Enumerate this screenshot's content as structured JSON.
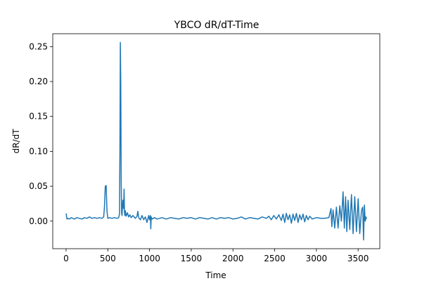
{
  "chart_data": {
    "type": "line",
    "title": "YBCO dR/dT-Time",
    "xlabel": "Time",
    "ylabel": "dR/dT",
    "xlim": [
      -160,
      3760
    ],
    "ylim": [
      -0.0395,
      0.2685
    ],
    "xticks": [
      0,
      500,
      1000,
      1500,
      2000,
      2500,
      3000,
      3500
    ],
    "xtick_labels": [
      "0",
      "500",
      "1000",
      "1500",
      "2000",
      "2500",
      "3000",
      "3500"
    ],
    "yticks": [
      0.0,
      0.05,
      0.1,
      0.15,
      0.2,
      0.25
    ],
    "ytick_labels": [
      "0.00",
      "0.05",
      "0.10",
      "0.15",
      "0.20",
      "0.25"
    ],
    "grid": false,
    "series": [
      {
        "color": "#1f77b4",
        "x": [
          0,
          10,
          20,
          40,
          60,
          80,
          100,
          130,
          160,
          190,
          220,
          250,
          280,
          310,
          340,
          370,
          400,
          430,
          450,
          460,
          470,
          480,
          490,
          500,
          520,
          550,
          580,
          610,
          630,
          640,
          645,
          650,
          655,
          660,
          665,
          670,
          680,
          690,
          695,
          700,
          705,
          710,
          720,
          735,
          750,
          765,
          780,
          800,
          830,
          850,
          860,
          870,
          890,
          910,
          930,
          950,
          970,
          990,
          1000,
          1010,
          1015,
          1020,
          1030,
          1060,
          1090,
          1120,
          1150,
          1200,
          1250,
          1300,
          1350,
          1400,
          1450,
          1500,
          1550,
          1600,
          1650,
          1700,
          1750,
          1800,
          1850,
          1900,
          1950,
          2000,
          2050,
          2100,
          2150,
          2200,
          2250,
          2300,
          2350,
          2400,
          2430,
          2460,
          2490,
          2520,
          2550,
          2580,
          2600,
          2620,
          2640,
          2660,
          2680,
          2700,
          2720,
          2740,
          2760,
          2780,
          2800,
          2820,
          2840,
          2860,
          2880,
          2900,
          2920,
          2950,
          3000,
          3050,
          3100,
          3150,
          3175,
          3185,
          3200,
          3220,
          3240,
          3260,
          3280,
          3300,
          3320,
          3335,
          3350,
          3365,
          3380,
          3400,
          3420,
          3440,
          3460,
          3480,
          3500,
          3520,
          3540,
          3555,
          3565,
          3575,
          3585,
          3595,
          3600
        ],
        "y": [
          0.011,
          0.003,
          0.004,
          0.003,
          0.005,
          0.004,
          0.003,
          0.005,
          0.004,
          0.003,
          0.005,
          0.004,
          0.006,
          0.004,
          0.005,
          0.004,
          0.005,
          0.004,
          0.006,
          0.02,
          0.05,
          0.051,
          0.015,
          0.004,
          0.005,
          0.004,
          0.005,
          0.004,
          0.005,
          0.01,
          0.1,
          0.256,
          0.2,
          0.06,
          0.012,
          0.008,
          0.03,
          0.018,
          0.046,
          0.012,
          0.008,
          0.015,
          0.007,
          0.012,
          0.006,
          0.009,
          0.005,
          0.008,
          0.004,
          0.007,
          0.014,
          0.005,
          0.002,
          0.008,
          0.002,
          0.006,
          -0.002,
          0.008,
          0.002,
          0.008,
          -0.011,
          0.006,
          0.003,
          0.005,
          0.003,
          0.004,
          0.005,
          0.003,
          0.005,
          0.004,
          0.003,
          0.005,
          0.004,
          0.005,
          0.003,
          0.005,
          0.004,
          0.003,
          0.005,
          0.003,
          0.005,
          0.004,
          0.005,
          0.003,
          0.004,
          0.006,
          0.003,
          0.005,
          0.004,
          0.003,
          0.006,
          0.004,
          0.007,
          0.002,
          0.008,
          0.003,
          0.009,
          0.001,
          0.01,
          -0.002,
          0.011,
          0.002,
          0.009,
          -0.003,
          0.01,
          0.001,
          0.011,
          -0.002,
          0.009,
          0.002,
          0.01,
          -0.001,
          0.008,
          0.002,
          0.007,
          0.003,
          0.005,
          0.004,
          0.004,
          0.005,
          0.018,
          -0.008,
          0.016,
          -0.01,
          0.02,
          -0.01,
          0.022,
          0.0,
          0.042,
          -0.01,
          0.035,
          -0.015,
          0.03,
          -0.012,
          0.038,
          -0.018,
          0.035,
          -0.015,
          0.032,
          -0.018,
          0.015,
          0.02,
          -0.027,
          0.023,
          0.0,
          0.006,
          0.003
        ]
      }
    ]
  }
}
